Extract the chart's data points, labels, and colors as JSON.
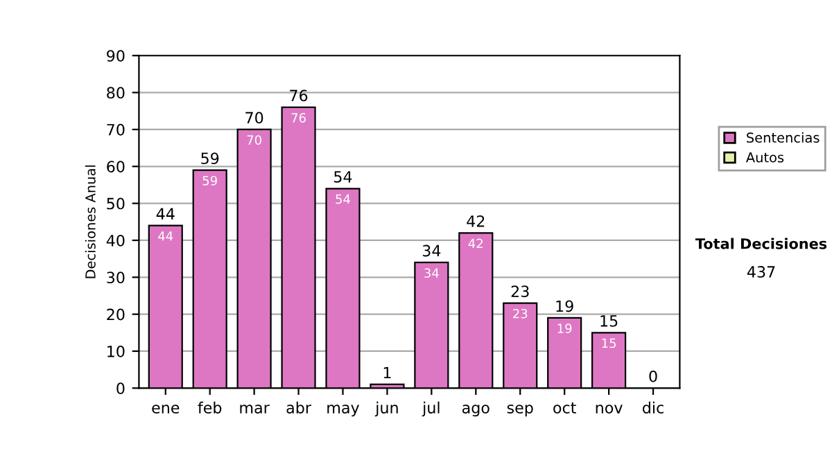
{
  "chart_data": {
    "type": "bar",
    "stacked": true,
    "ylabel": "Decisiones Anual",
    "categories": [
      "ene",
      "feb",
      "mar",
      "abr",
      "may",
      "jun",
      "jul",
      "ago",
      "sep",
      "oct",
      "nov",
      "dic"
    ],
    "series": [
      {
        "name": "Sentencias",
        "color": "#dd77c3",
        "values": [
          44,
          59,
          70,
          76,
          54,
          1,
          34,
          42,
          23,
          19,
          15,
          0
        ],
        "value_labels": [
          "44",
          "59",
          "70",
          "76",
          "54",
          null,
          "34",
          "42",
          "23",
          "19",
          "15",
          null
        ]
      },
      {
        "name": "Autos",
        "color": "#e8f0a8",
        "values": [
          0,
          0,
          0,
          0,
          0,
          0,
          0,
          0,
          0,
          0,
          0,
          0
        ]
      }
    ],
    "totals": [
      "44",
      "59",
      "70",
      "76",
      "54",
      "1",
      "34",
      "42",
      "23",
      "19",
      "15",
      "0"
    ],
    "ylim": [
      0,
      90
    ],
    "yticks": [
      0,
      10,
      20,
      30,
      40,
      50,
      60,
      70,
      80,
      90
    ],
    "grid": "y",
    "legend": "right",
    "annotations": [
      "Total Decisiones",
      "437"
    ]
  }
}
